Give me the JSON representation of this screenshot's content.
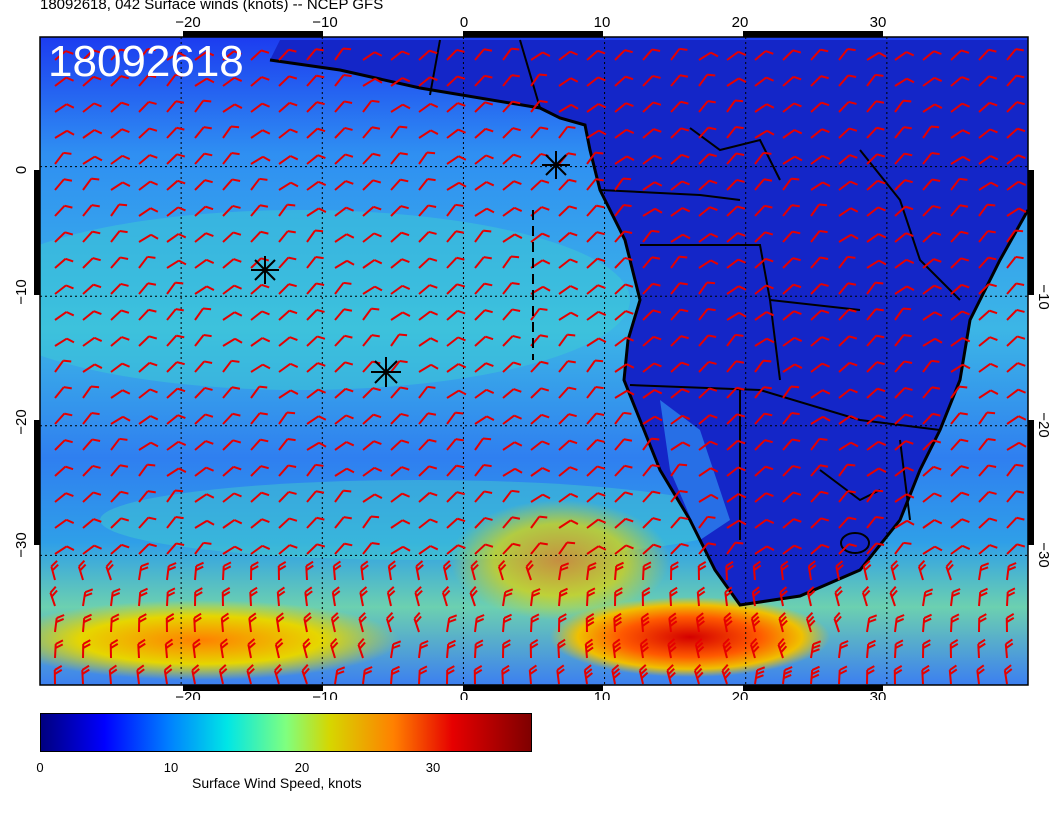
{
  "title": "18092618, 042 Surface winds (knots) -- NCEP GFS",
  "stamp": "18092618",
  "map": {
    "lon_range": [
      -30,
      40
    ],
    "lat_range": [
      -40,
      10
    ],
    "top_lon_ticks": [
      "−20",
      "−10",
      "0",
      "10",
      "20",
      "30"
    ],
    "bottom_lon_ticks": [
      "−20",
      "−10",
      "0",
      "10",
      "20",
      "30"
    ],
    "left_lat_ticks": [
      "0",
      "−10",
      "−20",
      "−30"
    ],
    "right_lat_ticks": [
      "−10",
      "−20",
      "−30"
    ],
    "barb_color": "#e60000"
  },
  "colorbar": {
    "ticks": [
      "0",
      "10",
      "20",
      "30"
    ],
    "label": "Surface Wind Speed, knots"
  }
}
